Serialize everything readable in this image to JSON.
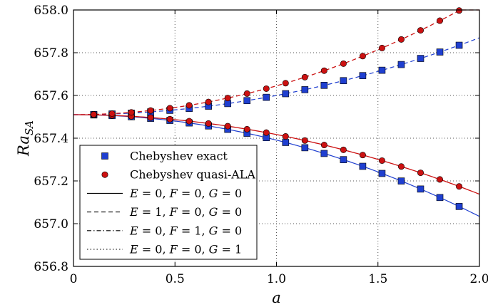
{
  "chart_data": {
    "type": "line",
    "xlabel": "a",
    "ylabel": {
      "main": "Ra",
      "sub": "SA"
    },
    "xlim": [
      0,
      2.0
    ],
    "ylim": [
      656.8,
      658.0
    ],
    "xticks": [
      "0",
      "0.5",
      "1.0",
      "1.5",
      "2.0"
    ],
    "yticks": [
      "656.8",
      "657.0",
      "657.2",
      "657.4",
      "657.6",
      "657.8",
      "658.0"
    ],
    "grid": "dotted",
    "legend_position": "bottom-left",
    "colors": {
      "exact": "#1f3fd0",
      "quasi": "#cc1111",
      "marker_edge": "#000000"
    },
    "x_points": [
      0.1,
      0.19,
      0.285,
      0.38,
      0.475,
      0.57,
      0.665,
      0.76,
      0.855,
      0.95,
      1.045,
      1.14,
      1.235,
      1.33,
      1.425,
      1.52,
      1.615,
      1.71,
      1.805,
      1.9
    ],
    "model": {
      "base": 657.51,
      "E0_blue_coef": -0.119,
      "E0_red_coef": -0.093,
      "E1_blue_coef": 0.09,
      "E1_red_coef": 0.135
    },
    "legend": [
      {
        "style": "square",
        "color": "#1f3fd0",
        "plain": "Chebyshev exact"
      },
      {
        "style": "circle",
        "color": "#cc1111",
        "plain": "Chebyshev quasi-ALA"
      },
      {
        "style": "solid",
        "E": "0",
        "F": "0",
        "G": "0"
      },
      {
        "style": "dashed",
        "E": "1",
        "F": "0",
        "G": "0"
      },
      {
        "style": "dashdot",
        "E": "0",
        "F": "1",
        "G": "0"
      },
      {
        "style": "dotted",
        "E": "0",
        "F": "0",
        "G": "1"
      }
    ]
  }
}
